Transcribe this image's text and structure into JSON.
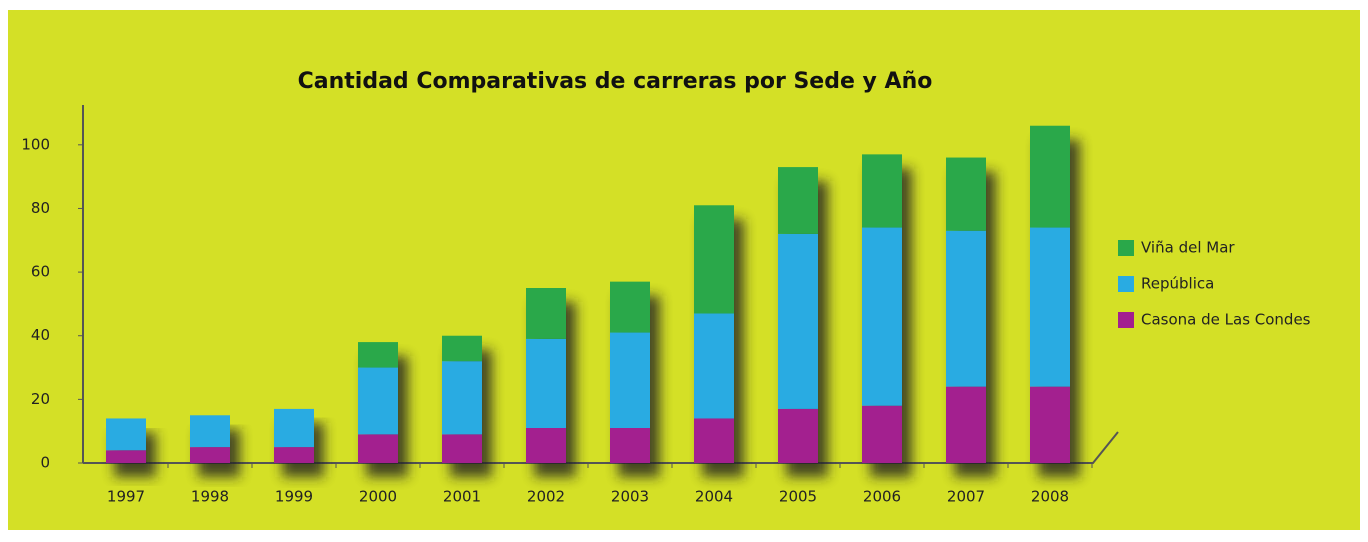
{
  "chart_data": {
    "type": "bar",
    "stacked": true,
    "title": "Cantidad Comparativas de carreras por Sede y Año",
    "categories": [
      "1997",
      "1998",
      "1999",
      "2000",
      "2001",
      "2002",
      "2003",
      "2004",
      "2005",
      "2006",
      "2007",
      "2008"
    ],
    "series": [
      {
        "name": "Casona de Las Condes",
        "color": "#a3208f",
        "values": [
          4,
          5,
          5,
          9,
          9,
          11,
          11,
          14,
          17,
          18,
          24,
          24
        ]
      },
      {
        "name": "República",
        "color": "#29abe2",
        "values": [
          10,
          10,
          12,
          21,
          23,
          28,
          30,
          33,
          55,
          56,
          49,
          50
        ]
      },
      {
        "name": "Viña del Mar",
        "color": "#2aa84a",
        "values": [
          0,
          0,
          0,
          8,
          8,
          16,
          16,
          34,
          21,
          23,
          23,
          32
        ]
      }
    ],
    "ylim": [
      0,
      110
    ],
    "yticks": [
      0,
      20,
      40,
      60,
      80,
      100
    ],
    "grid": false,
    "legend": "right"
  }
}
